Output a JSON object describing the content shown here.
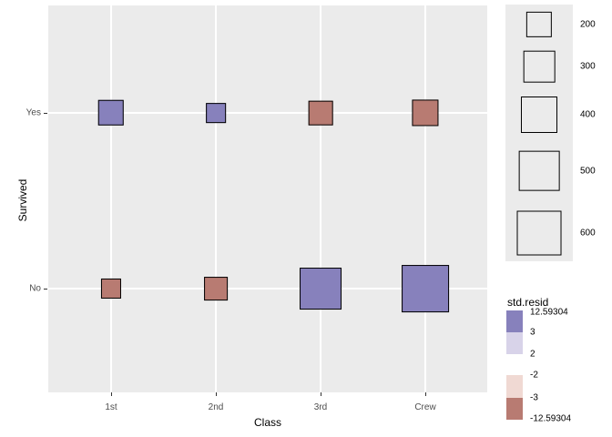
{
  "chart_data": {
    "type": "scatter",
    "subtype": "categorical count-square plot (mosaic / geom_count with std. residual fill)",
    "title": "",
    "xlabel": "Class",
    "ylabel": "Survived",
    "x_categories": [
      "1st",
      "2nd",
      "3rd",
      "Crew"
    ],
    "y_categories_top_to_bottom": [
      "Yes",
      "No"
    ],
    "points": [
      {
        "x": "1st",
        "y": "Yes",
        "n": 203,
        "std_resid": "positive"
      },
      {
        "x": "2nd",
        "y": "Yes",
        "n": 118,
        "std_resid": "positive"
      },
      {
        "x": "3rd",
        "y": "Yes",
        "n": 178,
        "std_resid": "negative"
      },
      {
        "x": "Crew",
        "y": "Yes",
        "n": 212,
        "std_resid": "negative"
      },
      {
        "x": "1st",
        "y": "No",
        "n": 122,
        "std_resid": "negative"
      },
      {
        "x": "2nd",
        "y": "No",
        "n": 167,
        "std_resid": "negative"
      },
      {
        "x": "3rd",
        "y": "No",
        "n": 528,
        "std_resid": "positive"
      },
      {
        "x": "Crew",
        "y": "No",
        "n": 673,
        "std_resid": "positive"
      }
    ],
    "grid": "white major gridlines on gray panel",
    "legend_position": "right"
  },
  "legends": {
    "size": {
      "values": [
        "200",
        "300",
        "400",
        "500",
        "600"
      ]
    },
    "color": {
      "title": "std.resid",
      "breaks": [
        "12.59304",
        "3",
        "2",
        "-2",
        "-3",
        "-12.59304"
      ],
      "segment_colors": [
        "#8781BC",
        "#D8D3E9",
        "#F0D9D3",
        "#B87B72"
      ]
    }
  },
  "colors": {
    "positive_fill": "#8781BC",
    "negative_fill": "#B87B72",
    "panel_bg": "#EBEBEB",
    "grid": "#FFFFFF",
    "axis_text": "#4D4D4D",
    "text": "#000000",
    "square_border": "#000000"
  }
}
